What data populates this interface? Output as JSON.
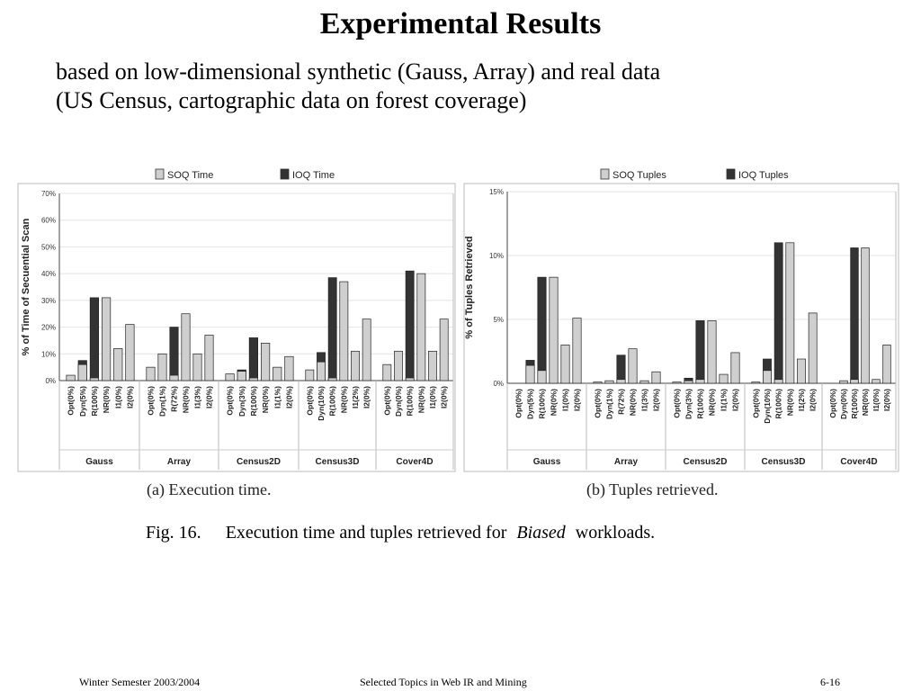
{
  "slide": {
    "title": "Experimental Results",
    "subtitle_line1": "based on low-dimensional synthetic (Gauss, Array) and real data",
    "subtitle_line2": "(US Census, cartographic data on forest coverage)"
  },
  "figure": {
    "caption_prefix": "Fig. 16.",
    "caption_text_before": "Execution time and tuples retrieved for",
    "caption_italic": "Biased",
    "caption_text_after": "workloads."
  },
  "colors": {
    "soq": "#cfcfcf",
    "ioq": "#333333",
    "axis": "#444444",
    "grid": "#e4e4e4"
  },
  "footer": {
    "left": "Winter Semester 2003/2004",
    "center": "Selected Topics in Web IR and Mining",
    "right": "6-16"
  },
  "chart_data": [
    {
      "type": "bar",
      "panel_label": "(a) Execution time.",
      "ylabel": "% of Time of Secuential Scan",
      "ylim": [
        0,
        70
      ],
      "yticks": [
        "0%",
        "10%",
        "20%",
        "30%",
        "40%",
        "50%",
        "60%",
        "70%"
      ],
      "legend": [
        "SOQ Time",
        "IOQ Time"
      ],
      "groups": [
        {
          "name": "Gauss",
          "labels": [
            "Opt(0%)",
            "Dyn(5%)",
            "R(100%)",
            "NR(0%)",
            "I1(0%)",
            "I2(0%)"
          ],
          "soq": [
            2,
            6,
            1,
            31,
            12,
            21
          ],
          "ioq": [
            0,
            7.5,
            31,
            0,
            0,
            0
          ]
        },
        {
          "name": "Array",
          "labels": [
            "Opt(0%)",
            "Dyn(1%)",
            "R(72%)",
            "NR(0%)",
            "I1(3%)",
            "I2(0%)"
          ],
          "soq": [
            5,
            10,
            2,
            25,
            10,
            17
          ],
          "ioq": [
            0,
            0,
            20,
            0,
            0,
            0
          ]
        },
        {
          "name": "Census2D",
          "labels": [
            "Opt(0%)",
            "Dyn(3%)",
            "R(100%)",
            "NR(0%)",
            "I1(1%)",
            "I2(0%)"
          ],
          "soq": [
            2.5,
            3.5,
            1,
            14,
            5,
            9
          ],
          "ioq": [
            0,
            4,
            16,
            0,
            0,
            0
          ]
        },
        {
          "name": "Census3D",
          "labels": [
            "Opt(0%)",
            "Dyn(10%)",
            "R(100%)",
            "NR(0%)",
            "I1(2%)",
            "I2(0%)"
          ],
          "soq": [
            4,
            7,
            1,
            37,
            11,
            23
          ],
          "ioq": [
            0,
            10.5,
            38.5,
            0,
            0,
            0
          ]
        },
        {
          "name": "Cover4D",
          "labels": [
            "Opt(0%)",
            "Dyn(0%)",
            "R(100%)",
            "NR(0%)",
            "I1(0%)",
            "I2(0%)"
          ],
          "soq": [
            6,
            11,
            1,
            40,
            11,
            23
          ],
          "ioq": [
            0,
            0,
            41,
            0,
            0,
            0
          ]
        }
      ]
    },
    {
      "type": "bar",
      "panel_label": "(b) Tuples retrieved.",
      "ylabel": "% of Tuples Retrieved",
      "ylim": [
        0,
        15
      ],
      "yticks": [
        "0%",
        "5%",
        "10%",
        "15%"
      ],
      "legend": [
        "SOQ Tuples",
        "IOQ Tuples"
      ],
      "groups": [
        {
          "name": "Gauss",
          "labels": [
            "Opt(0%)",
            "Dyn(5%)",
            "R(100%)",
            "NR(0%)",
            "I1(0%)",
            "I2(0%)"
          ],
          "soq": [
            0,
            1.4,
            1,
            8.3,
            3,
            5.1
          ],
          "ioq": [
            0,
            1.8,
            8.3,
            0,
            0,
            0
          ]
        },
        {
          "name": "Array",
          "labels": [
            "Opt(0%)",
            "Dyn(1%)",
            "R(72%)",
            "NR(0%)",
            "I1(3%)",
            "I2(0%)"
          ],
          "soq": [
            0.1,
            0.2,
            0.3,
            2.7,
            0.2,
            0.9
          ],
          "ioq": [
            0,
            0,
            2.2,
            0,
            0,
            0
          ]
        },
        {
          "name": "Census2D",
          "labels": [
            "Opt(0%)",
            "Dyn(3%)",
            "R(100%)",
            "NR(0%)",
            "I1(1%)",
            "I2(0%)"
          ],
          "soq": [
            0.1,
            0.2,
            0.3,
            4.9,
            0.7,
            2.4
          ],
          "ioq": [
            0,
            0.4,
            4.9,
            0,
            0,
            0
          ]
        },
        {
          "name": "Census3D",
          "labels": [
            "Opt(0%)",
            "Dyn(10%)",
            "R(100%)",
            "NR(0%)",
            "I1(2%)",
            "I2(0%)"
          ],
          "soq": [
            0.1,
            1,
            0.3,
            11,
            1.9,
            5.5
          ],
          "ioq": [
            0,
            1.9,
            11,
            0,
            0,
            0
          ]
        },
        {
          "name": "Cover4D",
          "labels": [
            "Opt(0%)",
            "Dyn(0%)",
            "R(100%)",
            "NR(0%)",
            "I1(0%)",
            "I2(0%)"
          ],
          "soq": [
            0,
            0.2,
            0.3,
            10.6,
            0.3,
            3
          ],
          "ioq": [
            0,
            0,
            10.6,
            0,
            0,
            0
          ]
        }
      ]
    }
  ]
}
